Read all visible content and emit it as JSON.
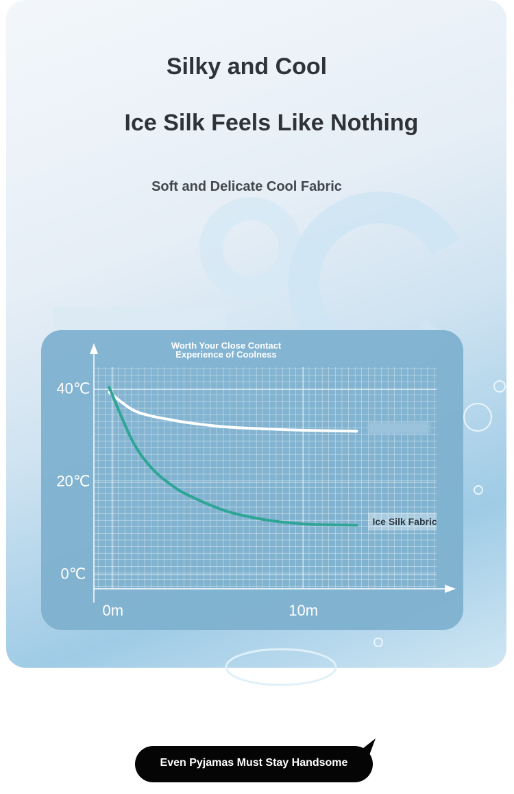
{
  "header": {
    "title": "Silky and Cool",
    "headline": "Ice Silk Feels Like Nothing",
    "subtitle": "Soft and Delicate Cool Fabric"
  },
  "chart_data": {
    "type": "line",
    "title": "Worth Your Close Contact Experience of Coolness",
    "x": [
      -0.2,
      1,
      2,
      3,
      4,
      6,
      8,
      10,
      12.8
    ],
    "series": [
      {
        "color": "#ffffff",
        "values": [
          39.4,
          35.7,
          34.3,
          33.5,
          32.8,
          31.9,
          31.5,
          31.2,
          31.0
        ]
      },
      {
        "name": "Ice Silk Fabric",
        "color": "#2fa596",
        "values": [
          40.5,
          29.1,
          23.2,
          19.6,
          17.1,
          13.7,
          11.9,
          11.0,
          10.7
        ]
      }
    ],
    "xlim": [
      -1,
      18
    ],
    "ylim": [
      -3,
      50
    ],
    "xticks": [
      {
        "value": 0,
        "label": "0m"
      },
      {
        "value": 10,
        "label": "10m"
      }
    ],
    "yticks": [
      {
        "value": 0,
        "label": "0℃"
      },
      {
        "value": 20,
        "label": "20℃"
      },
      {
        "value": 40,
        "label": "40℃"
      }
    ],
    "grid": true
  },
  "footer": {
    "button": "Even Pyjamas Must Stay Handsome"
  }
}
